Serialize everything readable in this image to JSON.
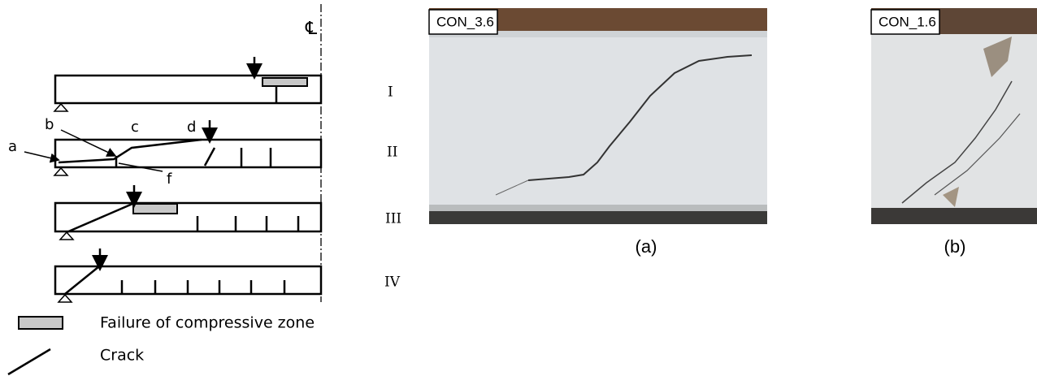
{
  "diagram": {
    "centerline_symbol": "℄",
    "cases": [
      {
        "label": "I"
      },
      {
        "label": "II"
      },
      {
        "label": "III"
      },
      {
        "label": "IV"
      }
    ],
    "points": {
      "a": "a",
      "b": "b",
      "c": "c",
      "d": "d",
      "f": "f"
    },
    "legend": [
      {
        "label": "Failure of compressive zone"
      },
      {
        "label": "Crack"
      }
    ]
  },
  "photos": [
    {
      "tag": "CON_3.6",
      "caption": "(a)"
    },
    {
      "tag": "CON_1.6",
      "caption": "(b)"
    }
  ]
}
